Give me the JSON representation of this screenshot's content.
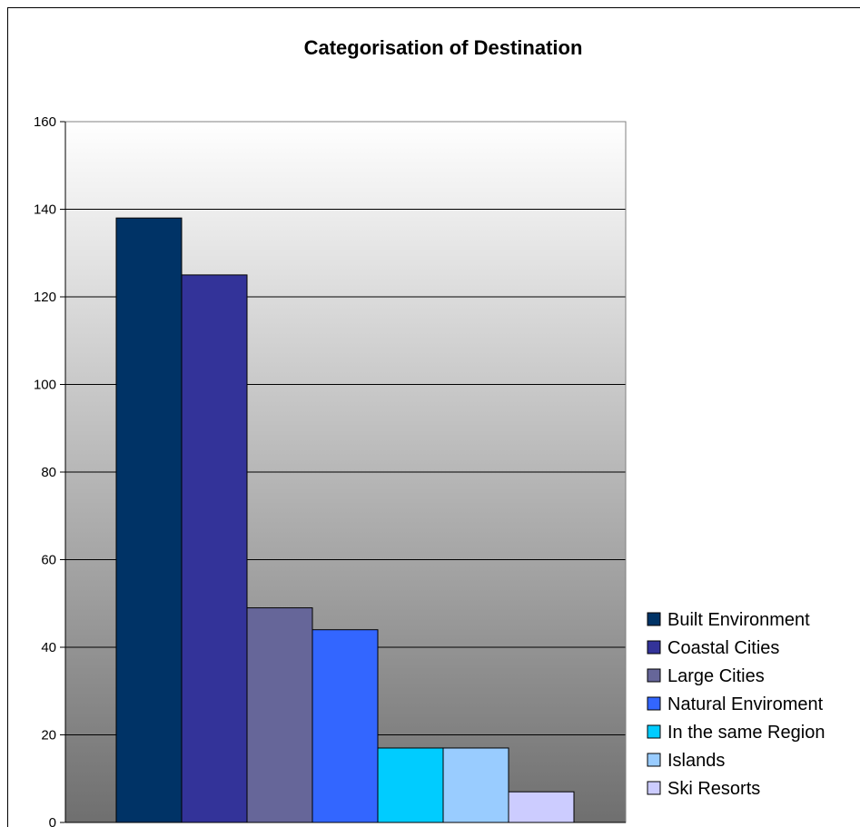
{
  "chart_data": {
    "type": "bar",
    "title": "Categorisation of Destination",
    "xlabel": "",
    "ylabel": "",
    "ylim": [
      0,
      160
    ],
    "yticks": [
      0,
      20,
      40,
      60,
      80,
      100,
      120,
      140,
      160
    ],
    "grid": true,
    "legend_position": "right",
    "series": [
      {
        "name": "Built Environment",
        "value": 138,
        "color": "#003366"
      },
      {
        "name": "Coastal Cities",
        "value": 125,
        "color": "#333399"
      },
      {
        "name": "Large Cities",
        "value": 49,
        "color": "#666699"
      },
      {
        "name": "Natural Enviroment",
        "value": 44,
        "color": "#3366FF"
      },
      {
        "name": "In the same Region",
        "value": 17,
        "color": "#00CCFF"
      },
      {
        "name": "Islands",
        "value": 17,
        "color": "#99CCFF"
      },
      {
        "name": "Ski Resorts",
        "value": 7,
        "color": "#CCCCFF"
      }
    ]
  }
}
